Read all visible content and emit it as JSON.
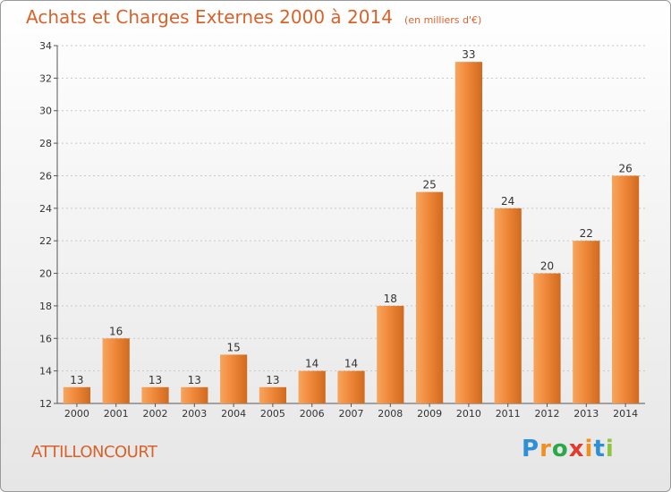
{
  "header": {
    "title": "Achats et Charges Externes 2000 à 2014",
    "subtitle": "(en milliers d'€)"
  },
  "footer": {
    "commune": "ATTILLONCOURT",
    "brand": {
      "letters": [
        "P",
        "r",
        "o",
        "x",
        "i",
        "t",
        "i"
      ],
      "colors": [
        "#2e8fd6",
        "#f09020",
        "#2aa84a",
        "#e23b2e",
        "#f09020",
        "#2e8fd6",
        "#8cc63f"
      ]
    }
  },
  "chart_data": {
    "type": "bar",
    "categories": [
      "2000",
      "2001",
      "2002",
      "2003",
      "2004",
      "2005",
      "2006",
      "2007",
      "2008",
      "2009",
      "2010",
      "2011",
      "2012",
      "2013",
      "2014"
    ],
    "values": [
      13,
      16,
      13,
      13,
      15,
      13,
      14,
      14,
      18,
      25,
      33,
      24,
      20,
      22,
      26
    ],
    "data_labels": [
      "13",
      "16",
      "13",
      "13",
      "15",
      "13",
      "14",
      "14",
      "18",
      "25",
      "33",
      "24",
      "20",
      "22",
      "26"
    ],
    "title": "Achats et Charges Externes 2000 à 2014",
    "subtitle": "(en milliers d'€)",
    "xlabel": "",
    "ylabel": "",
    "ylim": [
      12,
      34
    ],
    "yticks": [
      12,
      14,
      16,
      18,
      20,
      22,
      24,
      26,
      28,
      30,
      32,
      34
    ],
    "grid": true,
    "bar_color": "#f0883a",
    "bar_color_light": "#f6a65e",
    "bar_color_dark": "#d06a1e"
  }
}
